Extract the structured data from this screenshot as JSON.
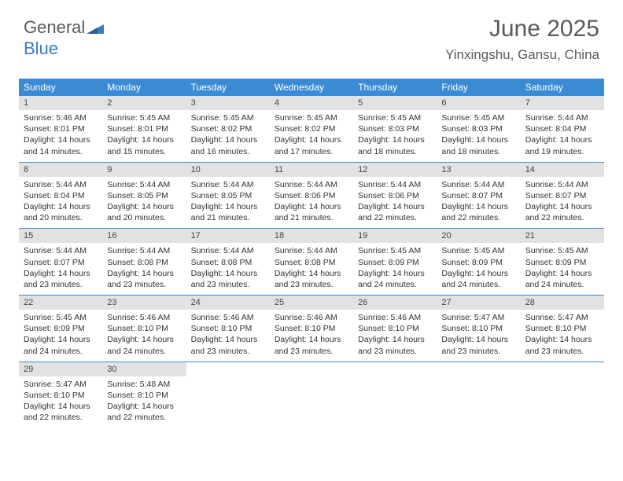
{
  "logo": {
    "part1": "General",
    "part2": "Blue"
  },
  "title": "June 2025",
  "subtitle": "Yinxingshu, Gansu, China",
  "colors": {
    "header_bg": "#3b8bd4",
    "header_fg": "#ffffff",
    "daynum_bg": "#e2e2e2",
    "border": "#3b8bd4",
    "text": "#333333",
    "title": "#5a5a5a",
    "logo_blue": "#3b7bbf"
  },
  "days_of_week": [
    "Sunday",
    "Monday",
    "Tuesday",
    "Wednesday",
    "Thursday",
    "Friday",
    "Saturday"
  ],
  "weeks": [
    [
      {
        "n": "1",
        "sr": "5:46 AM",
        "ss": "8:01 PM",
        "dh": "14",
        "dm": "14"
      },
      {
        "n": "2",
        "sr": "5:45 AM",
        "ss": "8:01 PM",
        "dh": "14",
        "dm": "15"
      },
      {
        "n": "3",
        "sr": "5:45 AM",
        "ss": "8:02 PM",
        "dh": "14",
        "dm": "16"
      },
      {
        "n": "4",
        "sr": "5:45 AM",
        "ss": "8:02 PM",
        "dh": "14",
        "dm": "17"
      },
      {
        "n": "5",
        "sr": "5:45 AM",
        "ss": "8:03 PM",
        "dh": "14",
        "dm": "18"
      },
      {
        "n": "6",
        "sr": "5:45 AM",
        "ss": "8:03 PM",
        "dh": "14",
        "dm": "18"
      },
      {
        "n": "7",
        "sr": "5:44 AM",
        "ss": "8:04 PM",
        "dh": "14",
        "dm": "19"
      }
    ],
    [
      {
        "n": "8",
        "sr": "5:44 AM",
        "ss": "8:04 PM",
        "dh": "14",
        "dm": "20"
      },
      {
        "n": "9",
        "sr": "5:44 AM",
        "ss": "8:05 PM",
        "dh": "14",
        "dm": "20"
      },
      {
        "n": "10",
        "sr": "5:44 AM",
        "ss": "8:05 PM",
        "dh": "14",
        "dm": "21"
      },
      {
        "n": "11",
        "sr": "5:44 AM",
        "ss": "8:06 PM",
        "dh": "14",
        "dm": "21"
      },
      {
        "n": "12",
        "sr": "5:44 AM",
        "ss": "8:06 PM",
        "dh": "14",
        "dm": "22"
      },
      {
        "n": "13",
        "sr": "5:44 AM",
        "ss": "8:07 PM",
        "dh": "14",
        "dm": "22"
      },
      {
        "n": "14",
        "sr": "5:44 AM",
        "ss": "8:07 PM",
        "dh": "14",
        "dm": "22"
      }
    ],
    [
      {
        "n": "15",
        "sr": "5:44 AM",
        "ss": "8:07 PM",
        "dh": "14",
        "dm": "23"
      },
      {
        "n": "16",
        "sr": "5:44 AM",
        "ss": "8:08 PM",
        "dh": "14",
        "dm": "23"
      },
      {
        "n": "17",
        "sr": "5:44 AM",
        "ss": "8:08 PM",
        "dh": "14",
        "dm": "23"
      },
      {
        "n": "18",
        "sr": "5:44 AM",
        "ss": "8:08 PM",
        "dh": "14",
        "dm": "23"
      },
      {
        "n": "19",
        "sr": "5:45 AM",
        "ss": "8:09 PM",
        "dh": "14",
        "dm": "24"
      },
      {
        "n": "20",
        "sr": "5:45 AM",
        "ss": "8:09 PM",
        "dh": "14",
        "dm": "24"
      },
      {
        "n": "21",
        "sr": "5:45 AM",
        "ss": "8:09 PM",
        "dh": "14",
        "dm": "24"
      }
    ],
    [
      {
        "n": "22",
        "sr": "5:45 AM",
        "ss": "8:09 PM",
        "dh": "14",
        "dm": "24"
      },
      {
        "n": "23",
        "sr": "5:46 AM",
        "ss": "8:10 PM",
        "dh": "14",
        "dm": "24"
      },
      {
        "n": "24",
        "sr": "5:46 AM",
        "ss": "8:10 PM",
        "dh": "14",
        "dm": "23"
      },
      {
        "n": "25",
        "sr": "5:46 AM",
        "ss": "8:10 PM",
        "dh": "14",
        "dm": "23"
      },
      {
        "n": "26",
        "sr": "5:46 AM",
        "ss": "8:10 PM",
        "dh": "14",
        "dm": "23"
      },
      {
        "n": "27",
        "sr": "5:47 AM",
        "ss": "8:10 PM",
        "dh": "14",
        "dm": "23"
      },
      {
        "n": "28",
        "sr": "5:47 AM",
        "ss": "8:10 PM",
        "dh": "14",
        "dm": "23"
      }
    ],
    [
      {
        "n": "29",
        "sr": "5:47 AM",
        "ss": "8:10 PM",
        "dh": "14",
        "dm": "22"
      },
      {
        "n": "30",
        "sr": "5:48 AM",
        "ss": "8:10 PM",
        "dh": "14",
        "dm": "22"
      },
      null,
      null,
      null,
      null,
      null
    ]
  ],
  "labels": {
    "sunrise": "Sunrise: ",
    "sunset": "Sunset: ",
    "daylight1": "Daylight: ",
    "daylight2": " hours and ",
    "daylight3": " minutes."
  }
}
